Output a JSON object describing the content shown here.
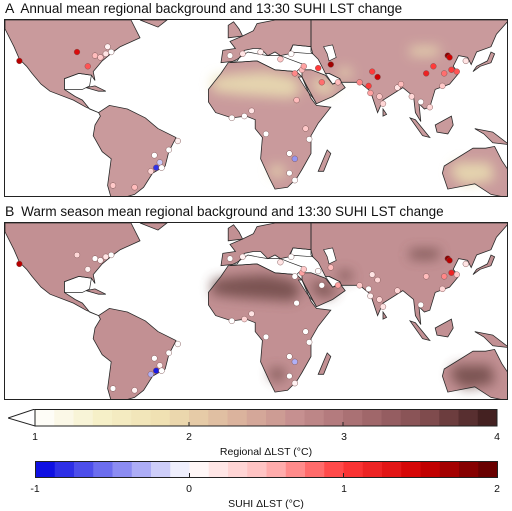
{
  "panels": [
    {
      "letter": "A",
      "title": "Annual mean regional background and 13:30 SUHI LST change",
      "background": "#c99a9c",
      "desert_color": "#eadfb2",
      "cities": [
        {
          "lon": -122,
          "lat": 37,
          "suhi": 1.6
        },
        {
          "lon": -90,
          "lat": 42,
          "suhi": 1.4
        },
        {
          "lon": -84,
          "lat": 34,
          "suhi": 0.9
        },
        {
          "lon": -80,
          "lat": 40,
          "suhi": 0.5
        },
        {
          "lon": -77,
          "lat": 39,
          "suhi": 0.4
        },
        {
          "lon": -74,
          "lat": 41,
          "suhi": 0.2
        },
        {
          "lon": -71,
          "lat": 42,
          "suhi": 0.0
        },
        {
          "lon": -73,
          "lat": 45,
          "suhi": 0.1
        },
        {
          "lon": -58,
          "lat": -34,
          "suhi": 0.5
        },
        {
          "lon": -70,
          "lat": -33,
          "suhi": 0.4
        },
        {
          "lon": -47,
          "lat": -16,
          "suhi": 0.0
        },
        {
          "lon": -44,
          "lat": -20,
          "suhi": -0.2
        },
        {
          "lon": -46,
          "lat": -23,
          "suhi": -0.8
        },
        {
          "lon": -43,
          "lat": -23,
          "suhi": 0.0
        },
        {
          "lon": -49,
          "lat": -25,
          "suhi": 0.3
        },
        {
          "lon": -39,
          "lat": -13,
          "suhi": 0.0
        },
        {
          "lon": -34,
          "lat": -8,
          "suhi": 0.1
        },
        {
          "lon": -5,
          "lat": 40,
          "suhi": 0.0
        },
        {
          "lon": 2,
          "lat": 41,
          "suhi": 0.2
        },
        {
          "lon": 12,
          "lat": 42,
          "suhi": 0.1
        },
        {
          "lon": 23,
          "lat": 38,
          "suhi": 0.4
        },
        {
          "lon": 29,
          "lat": 41,
          "suhi": 0.0
        },
        {
          "lon": 31,
          "lat": 30,
          "suhi": 0.7
        },
        {
          "lon": 35,
          "lat": 32,
          "suhi": 0.5
        },
        {
          "lon": 36,
          "lat": 34,
          "suhi": 0.6
        },
        {
          "lon": 44,
          "lat": 33,
          "suhi": 1.0
        },
        {
          "lon": 51,
          "lat": 35,
          "suhi": 1.7
        },
        {
          "lon": 46,
          "lat": 25,
          "suhi": 0.8
        },
        {
          "lon": 55,
          "lat": 25,
          "suhi": 0.5
        },
        {
          "lon": 67,
          "lat": 25,
          "suhi": 0.7
        },
        {
          "lon": 74,
          "lat": 31,
          "suhi": 1.0
        },
        {
          "lon": 77,
          "lat": 28,
          "suhi": 1.5
        },
        {
          "lon": 72,
          "lat": 23,
          "suhi": 1.0
        },
        {
          "lon": 73,
          "lat": 19,
          "suhi": 0.6
        },
        {
          "lon": 78,
          "lat": 17,
          "suhi": 0.4
        },
        {
          "lon": 80,
          "lat": 13,
          "suhi": 0.3
        },
        {
          "lon": 88,
          "lat": 22,
          "suhi": 0.2
        },
        {
          "lon": 90,
          "lat": 24,
          "suhi": 0.5
        },
        {
          "lon": 104,
          "lat": 30,
          "suhi": 1.2
        },
        {
          "lon": 108,
          "lat": 34,
          "suhi": 1.0
        },
        {
          "lon": 114,
          "lat": 30,
          "suhi": 0.8
        },
        {
          "lon": 116,
          "lat": 40,
          "suhi": 1.8
        },
        {
          "lon": 117,
          "lat": 39,
          "suhi": 1.5
        },
        {
          "lon": 118,
          "lat": 32,
          "suhi": 1.0
        },
        {
          "lon": 121,
          "lat": 31,
          "suhi": 0.9
        },
        {
          "lon": 113,
          "lat": 23,
          "suhi": 0.4
        },
        {
          "lon": 126,
          "lat": 37,
          "suhi": 0.2
        },
        {
          "lon": 106,
          "lat": 11,
          "suhi": 0.3
        },
        {
          "lon": 101,
          "lat": 14,
          "suhi": 0.0
        },
        {
          "lon": 96,
          "lat": 17,
          "suhi": 0.3
        },
        {
          "lon": 3,
          "lat": 6,
          "suhi": 0.0
        },
        {
          "lon": 7,
          "lat": 9,
          "suhi": 0.2
        },
        {
          "lon": -4,
          "lat": 5,
          "suhi": 0.0
        },
        {
          "lon": 15,
          "lat": -4,
          "suhi": 0.0
        },
        {
          "lon": 32,
          "lat": 15,
          "suhi": 0.5
        },
        {
          "lon": 37,
          "lat": -1,
          "suhi": 0.4
        },
        {
          "lon": 39,
          "lat": -7,
          "suhi": 0.0
        },
        {
          "lon": 28,
          "lat": -15,
          "suhi": 0.0
        },
        {
          "lon": 31,
          "lat": -18,
          "suhi": -0.4
        },
        {
          "lon": 28,
          "lat": -26,
          "suhi": 0.0
        },
        {
          "lon": 31,
          "lat": -30,
          "suhi": 0.0
        }
      ]
    },
    {
      "letter": "B",
      "title": "Warm season mean regional background and 13:30 SUHI LST change",
      "background": "#c29093",
      "desert_color": "#6e4846",
      "cities": [
        {
          "lon": -122,
          "lat": 37,
          "suhi": 1.6
        },
        {
          "lon": -90,
          "lat": 42,
          "suhi": 0.3
        },
        {
          "lon": -84,
          "lat": 34,
          "suhi": 0.1
        },
        {
          "lon": -80,
          "lat": 40,
          "suhi": 0.0
        },
        {
          "lon": -77,
          "lat": 39,
          "suhi": 0.1
        },
        {
          "lon": -74,
          "lat": 41,
          "suhi": 0.2
        },
        {
          "lon": -71,
          "lat": 42,
          "suhi": 0.0
        },
        {
          "lon": -58,
          "lat": -34,
          "suhi": 0.1
        },
        {
          "lon": -70,
          "lat": -33,
          "suhi": 0.0
        },
        {
          "lon": -47,
          "lat": -16,
          "suhi": 0.0
        },
        {
          "lon": -44,
          "lat": -20,
          "suhi": 0.1
        },
        {
          "lon": -46,
          "lat": -23,
          "suhi": -0.9
        },
        {
          "lon": -43,
          "lat": -23,
          "suhi": 0.0
        },
        {
          "lon": -49,
          "lat": -25,
          "suhi": -0.3
        },
        {
          "lon": -39,
          "lat": -13,
          "suhi": 0.0
        },
        {
          "lon": -34,
          "lat": -8,
          "suhi": 0.0
        },
        {
          "lon": -5,
          "lat": 40,
          "suhi": 0.0
        },
        {
          "lon": 2,
          "lat": 41,
          "suhi": 0.1
        },
        {
          "lon": 23,
          "lat": 38,
          "suhi": 0.2
        },
        {
          "lon": 29,
          "lat": 41,
          "suhi": 0.0
        },
        {
          "lon": 31,
          "lat": 30,
          "suhi": 0.0
        },
        {
          "lon": 35,
          "lat": 32,
          "suhi": 0.6
        },
        {
          "lon": 36,
          "lat": 34,
          "suhi": 0.4
        },
        {
          "lon": 44,
          "lat": 33,
          "suhi": 0.0
        },
        {
          "lon": 51,
          "lat": 35,
          "suhi": 0.5
        },
        {
          "lon": 46,
          "lat": 25,
          "suhi": 0.0
        },
        {
          "lon": 55,
          "lat": 25,
          "suhi": 0.6
        },
        {
          "lon": 67,
          "lat": 25,
          "suhi": 0.4
        },
        {
          "lon": 74,
          "lat": 31,
          "suhi": 0.2
        },
        {
          "lon": 77,
          "lat": 28,
          "suhi": 0.3
        },
        {
          "lon": 72,
          "lat": 23,
          "suhi": 0.0
        },
        {
          "lon": 73,
          "lat": 19,
          "suhi": 0.1
        },
        {
          "lon": 78,
          "lat": 17,
          "suhi": 0.3
        },
        {
          "lon": 80,
          "lat": 13,
          "suhi": 0.2
        },
        {
          "lon": 88,
          "lat": 22,
          "suhi": 0.3
        },
        {
          "lon": 104,
          "lat": 30,
          "suhi": 0.5
        },
        {
          "lon": 114,
          "lat": 30,
          "suhi": 0.7
        },
        {
          "lon": 116,
          "lat": 40,
          "suhi": 1.8
        },
        {
          "lon": 117,
          "lat": 39,
          "suhi": 1.6
        },
        {
          "lon": 118,
          "lat": 32,
          "suhi": 1.2
        },
        {
          "lon": 121,
          "lat": 31,
          "suhi": 0.4
        },
        {
          "lon": 113,
          "lat": 23,
          "suhi": 0.3
        },
        {
          "lon": 126,
          "lat": 37,
          "suhi": 0.2
        },
        {
          "lon": 101,
          "lat": 14,
          "suhi": 0.0
        },
        {
          "lon": 3,
          "lat": 6,
          "suhi": 0.3
        },
        {
          "lon": 7,
          "lat": 9,
          "suhi": 0.2
        },
        {
          "lon": -4,
          "lat": 5,
          "suhi": 0.0
        },
        {
          "lon": 15,
          "lat": -4,
          "suhi": 0.0
        },
        {
          "lon": 32,
          "lat": 15,
          "suhi": 0.0
        },
        {
          "lon": 37,
          "lat": -1,
          "suhi": 0.0
        },
        {
          "lon": 39,
          "lat": -7,
          "suhi": 0.0
        },
        {
          "lon": 28,
          "lat": -15,
          "suhi": 0.0
        },
        {
          "lon": 31,
          "lat": -18,
          "suhi": -0.3
        },
        {
          "lon": 28,
          "lat": -26,
          "suhi": 0.0
        },
        {
          "lon": 31,
          "lat": -30,
          "suhi": 0.1
        }
      ]
    }
  ],
  "regional_colorbar": {
    "title": "Regional ΔLST (°C)",
    "ticks": [
      "1",
      "2",
      "3",
      "4"
    ],
    "range": [
      1,
      4
    ],
    "colors": [
      "#ffffff",
      "#f6f0c8",
      "#efdfb0",
      "#dcb59e",
      "#c58e8f",
      "#a46a6e",
      "#7e4a4c",
      "#3a1a1a"
    ]
  },
  "suhi_colorbar": {
    "title": "SUHI ΔLST (°C)",
    "ticks": [
      "-1",
      "0",
      "1",
      "2"
    ],
    "range": [
      -1,
      2
    ],
    "colors": [
      "#0000e0",
      "#7b7cf0",
      "#ffffff",
      "#ffbcbc",
      "#ff3a3a",
      "#d00000",
      "#5a0000"
    ]
  },
  "land_color": "#c99a9c",
  "ocean_color": "#ffffff",
  "coast_color": "#2a2a2a"
}
